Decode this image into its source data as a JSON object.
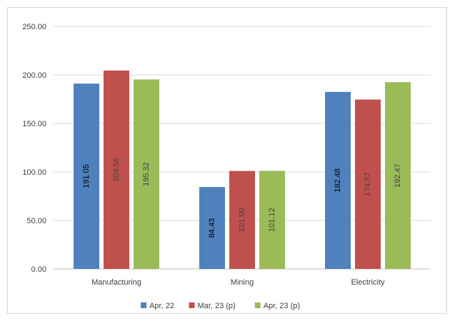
{
  "chart_data": {
    "type": "bar",
    "title": "",
    "xlabel": "",
    "ylabel": "",
    "categories": [
      "Manufacturing",
      "Mining",
      "Electricity"
    ],
    "series": [
      {
        "name": "Apr, 22",
        "values": [
          191.05,
          84.43,
          182.48
        ],
        "color": "#4f81bd",
        "label_color": "#000000"
      },
      {
        "name": "Mar, 23 (p)",
        "values": [
          204.56,
          101.0,
          174.57
        ],
        "color": "#c0504d",
        "label_color": "#404040"
      },
      {
        "name": "Apr, 23 (p)",
        "values": [
          195.32,
          101.12,
          192.47
        ],
        "color": "#9bbb59",
        "label_color": "#404040"
      }
    ],
    "data_labels": [
      [
        "191.05",
        "84.43",
        "182.48"
      ],
      [
        "204.56",
        "101.00",
        "174.57"
      ],
      [
        "195.32",
        "101.12",
        "192.47"
      ]
    ],
    "ylim": [
      0,
      250
    ],
    "yticks": [
      "0.00",
      "50.00",
      "100.00",
      "150.00",
      "200.00",
      "250.00"
    ],
    "grid": true,
    "legend_position": "bottom"
  }
}
